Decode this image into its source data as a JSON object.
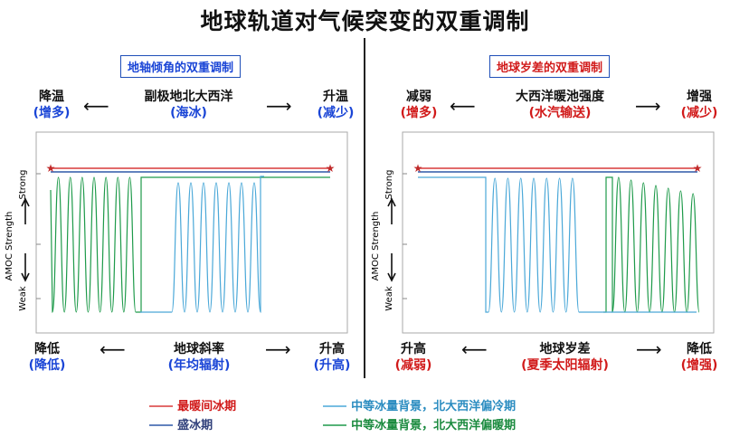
{
  "title": "地球轨道对气候突变的双重调制",
  "colors": {
    "warm_interglacial": "#d83a3a",
    "glacial": "#2f58a8",
    "intermediate_cold": "#4aa8d8",
    "intermediate_warm": "#1e9a4a",
    "blue_text": "#1a45d6",
    "red_text": "#d11a1a"
  },
  "left": {
    "box_label": "地轴倾角的双重调制",
    "top_left": {
      "main": "降温",
      "sub": "(增多)"
    },
    "top_center": {
      "main": "副极地北大西洋",
      "sub": "(海冰)"
    },
    "top_right": {
      "main": "升温",
      "sub": "(减少)"
    },
    "bottom_left": {
      "main": "降低",
      "sub": "(降低)"
    },
    "bottom_center": {
      "main": "地球斜率",
      "sub": "(年均辐射)"
    },
    "bottom_right": {
      "main": "升高",
      "sub": "(升高)"
    },
    "y_axis": {
      "label": "AMOC Strength",
      "top": "Strong",
      "bottom": "Weak"
    }
  },
  "right": {
    "box_label": "地球岁差的双重调制",
    "top_left": {
      "main": "减弱",
      "sub": "(增多)"
    },
    "top_center": {
      "main": "大西洋暖池强度",
      "sub": "(水汽输送)"
    },
    "top_right": {
      "main": "增强",
      "sub": "(减少)"
    },
    "bottom_left": {
      "main": "升高",
      "sub": "(减弱)"
    },
    "bottom_center": {
      "main": "地球岁差",
      "sub": "(夏季太阳辐射)"
    },
    "bottom_right": {
      "main": "降低",
      "sub": "(增强)"
    },
    "y_axis": {
      "label": "AMOC Strength",
      "top": "Strong",
      "bottom": "Weak"
    }
  },
  "legend": [
    {
      "label": "最暖间冰期",
      "color": "#d83a3a",
      "text_color": "#d11a1a"
    },
    {
      "label": "盛冰期",
      "color": "#2f58a8",
      "text_color": "#2f3f7a"
    },
    {
      "label": "中等冰量背景，北大西洋偏冷期",
      "color": "#4aa8d8",
      "text_color": "#2a8cc0"
    },
    {
      "label": "中等冰量背景，北大西洋偏暖期",
      "color": "#1e9a4a",
      "text_color": "#1a8a3e"
    }
  ]
}
